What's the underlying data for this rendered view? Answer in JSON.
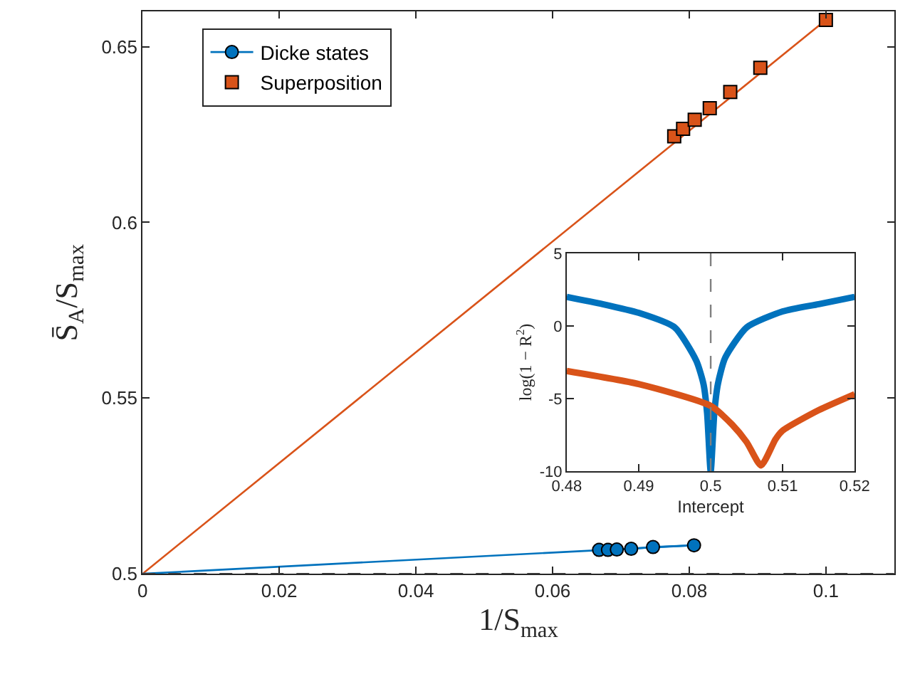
{
  "chart_data": [
    {
      "type": "scatter",
      "xlabel": "1/S$_{max}$",
      "ylabel": "S̄$_{A}$/S$_{max}$",
      "xlim": [
        0,
        0.11
      ],
      "xticks": [
        0,
        0.02,
        0.04,
        0.06,
        0.08,
        0.1
      ],
      "ylim": [
        0.5,
        0.66
      ],
      "yticks": [
        0.5,
        0.55,
        0.6,
        0.65
      ],
      "legend": "top left",
      "ref_lines": [
        {
          "axis": "y",
          "value": 0.5,
          "color": "#404040",
          "line_style": "dashed"
        }
      ],
      "series": [
        {
          "type": "line",
          "color": "#d95319",
          "x": [
            0,
            0.1
          ],
          "values": [
            0.5,
            0.6576
          ]
        },
        {
          "type": "line",
          "color": "#0072bd",
          "x": [
            0,
            0.0807
          ],
          "values": [
            0.5,
            0.5081
          ]
        },
        {
          "type": "line",
          "name": "Dicke states",
          "color": "#0072bd",
          "marker": "circle",
          "x": [
            0.0668,
            0.0681,
            0.0694,
            0.0715,
            0.0747,
            0.0807
          ],
          "values": [
            0.5068,
            0.5068,
            0.5069,
            0.5071,
            0.5076,
            0.5081
          ]
        },
        {
          "name": "Superposition",
          "color": "#d95319",
          "marker": "square",
          "x": [
            0.0778,
            0.0791,
            0.0808,
            0.083,
            0.086,
            0.0904,
            0.1
          ],
          "values": [
            0.6245,
            0.6266,
            0.6292,
            0.6325,
            0.6371,
            0.644,
            0.6576
          ]
        }
      ]
    },
    {
      "type": "line",
      "xlabel": "Intercept",
      "ylabel": "log(1 − R$^{2}$)",
      "xlim": [
        0.48,
        0.52
      ],
      "xticks": [
        0.48,
        0.49,
        0.5,
        0.51,
        0.52
      ],
      "ylim": [
        -10,
        5
      ],
      "yticks": [
        -10,
        -5,
        0,
        5
      ],
      "marker": "none",
      "ref_lines": [
        {
          "axis": "x",
          "value": 0.5,
          "color": "#808080",
          "line_style": "dashed"
        }
      ],
      "series": [
        {
          "color": "#0072bd",
          "x": [
            0.48,
            0.485,
            0.49,
            0.495,
            0.498,
            0.499,
            0.4995,
            0.5,
            0.5005,
            0.501,
            0.502,
            0.505,
            0.51,
            0.515,
            0.52
          ],
          "values": [
            2.0,
            1.5,
            0.9,
            -0.1,
            -2.4,
            -4.0,
            -6.0,
            -10,
            -6.0,
            -4.0,
            -2.2,
            -0.1,
            1.0,
            1.5,
            2.0
          ]
        },
        {
          "color": "#d95319",
          "x": [
            0.48,
            0.49,
            0.5,
            0.503,
            0.505,
            0.507,
            0.509,
            0.51,
            0.515,
            0.52
          ],
          "values": [
            -3.1,
            -4.0,
            -5.5,
            -6.8,
            -8.0,
            -9.6,
            -7.8,
            -7.2,
            -5.8,
            -4.7
          ]
        }
      ]
    }
  ]
}
